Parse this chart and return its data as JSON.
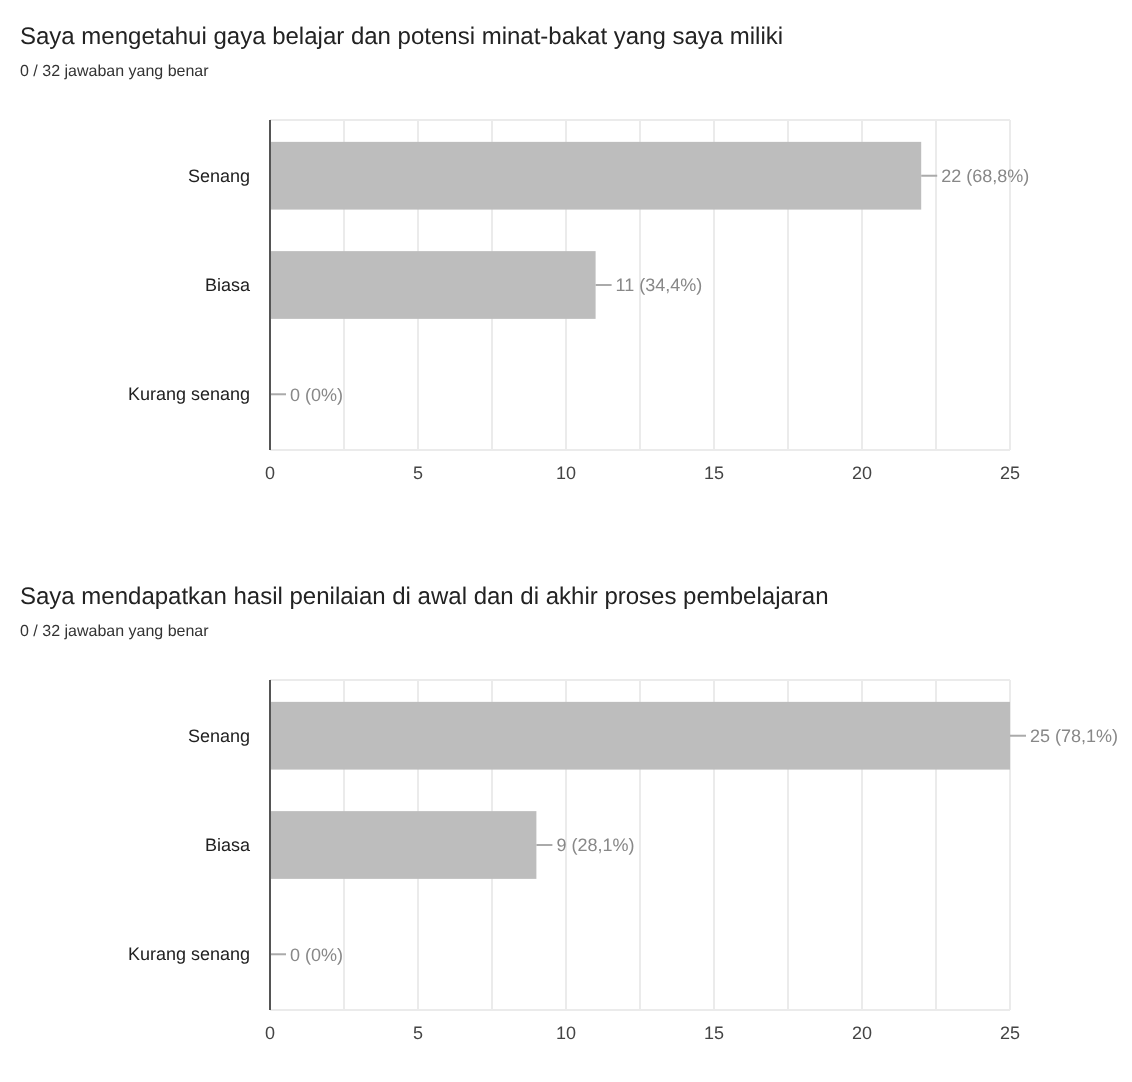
{
  "chart_data": [
    {
      "type": "bar",
      "orientation": "horizontal",
      "title": "Saya mengetahui gaya belajar dan potensi minat-bakat yang saya miliki",
      "subtitle": "0 / 32 jawaban yang benar",
      "categories": [
        "Senang",
        "Biasa",
        "Kurang senang"
      ],
      "values": [
        22,
        11,
        0
      ],
      "value_labels": [
        "22 (68,8%)",
        "11 (34,4%)",
        "0 (0%)"
      ],
      "color": "#bdbdbd",
      "xlim": [
        0,
        25
      ],
      "xticks": [
        0,
        {
          "value": 2.5,
          "label": null
        },
        5,
        {
          "value": 7.5,
          "label": null
        },
        10,
        {
          "value": 12.5,
          "label": null
        },
        15,
        {
          "value": 17.5,
          "label": null
        },
        20,
        {
          "value": 22.5,
          "label": null
        },
        25
      ],
      "grid": "x"
    },
    {
      "type": "bar",
      "orientation": "horizontal",
      "title": "Saya mendapatkan hasil penilaian di awal dan di akhir proses pembelajaran",
      "subtitle": "0 / 32 jawaban yang benar",
      "categories": [
        "Senang",
        "Biasa",
        "Kurang senang"
      ],
      "values": [
        25,
        9,
        0
      ],
      "value_labels": [
        "25 (78,1%)",
        "9 (28,1%)",
        "0 (0%)"
      ],
      "color": "#bdbdbd",
      "xlim": [
        0,
        25
      ],
      "xticks": [
        0,
        {
          "value": 2.5,
          "label": null
        },
        5,
        {
          "value": 7.5,
          "label": null
        },
        10,
        {
          "value": 12.5,
          "label": null
        },
        15,
        {
          "value": 17.5,
          "label": null
        },
        20,
        {
          "value": 22.5,
          "label": null
        },
        25
      ],
      "grid": "x"
    }
  ]
}
